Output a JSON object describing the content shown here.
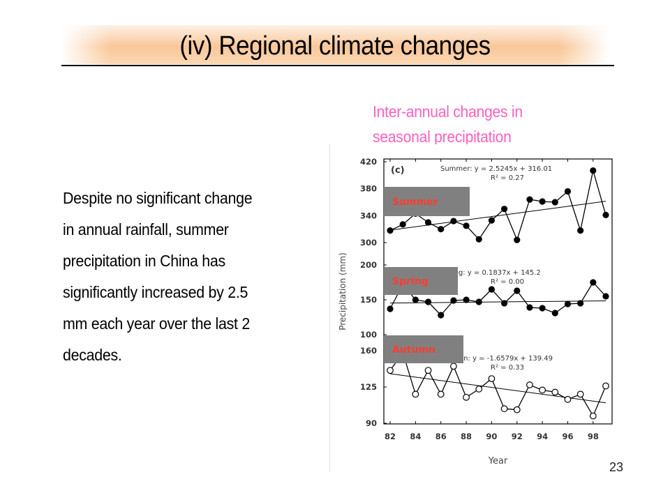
{
  "slide": {
    "title": "(iv) Regional climate changes",
    "page_number": "23"
  },
  "body": {
    "lines": [
      "Despite no significant change",
      "in annual rainfall, summer",
      "precipitation in China has",
      "significantly increased by 2.5",
      "mm each year over the last 2",
      "decades."
    ]
  },
  "chart_caption": {
    "lines": [
      "Inter-annual changes in",
      "seasonal precipitation"
    ]
  },
  "colors": {
    "caption": "#ff5fbf",
    "label_box": "#808080",
    "label_text": "#ff3b2f"
  },
  "chart_data": {
    "type": "line",
    "panel_label": "(c)",
    "xlabel": "Year",
    "ylabel": "Precipitation (mm)",
    "x_ticks": [
      "82",
      "84",
      "86",
      "88",
      "90",
      "92",
      "94",
      "96",
      "98"
    ],
    "x": [
      82,
      83,
      84,
      85,
      86,
      87,
      88,
      89,
      90,
      91,
      92,
      93,
      94,
      95,
      96,
      97,
      98,
      99
    ],
    "grid": false,
    "panels": [
      {
        "name": "Summer",
        "label": "Summer",
        "marker": "filled",
        "equation": "Summer: y = 2.5245x + 316.01",
        "r2": "R² = 0.27",
        "ylim": [
          300,
          420
        ],
        "y_ticks": [
          300,
          340,
          380,
          420
        ],
        "values": [
          318,
          327,
          343,
          330,
          320,
          332,
          325,
          305,
          333,
          350,
          304,
          364,
          361,
          360,
          376,
          318,
          407,
          341
        ],
        "trend": [
          318.5,
          361.4
        ]
      },
      {
        "name": "Spring",
        "label": "Spring",
        "marker": "filled",
        "equation": "Spring: y = 0.1837x + 145.2",
        "r2": "R² = 0.00",
        "ylim": [
          100,
          200
        ],
        "y_ticks": [
          100,
          150,
          200
        ],
        "values": [
          137,
          172,
          150,
          147,
          128,
          149,
          150,
          147,
          165,
          145,
          163,
          139,
          138,
          131,
          144,
          145,
          175,
          155
        ],
        "trend": [
          145.4,
          148.5
        ]
      },
      {
        "name": "Autumn",
        "label": "Autumn",
        "marker": "open",
        "equation": "Autumn: y = -1.6579x + 139.49",
        "r2": "R² = 0.33",
        "ylim": [
          90,
          160
        ],
        "y_ticks": [
          90,
          125,
          160
        ],
        "values": [
          141,
          158,
          118,
          141,
          118,
          145,
          115,
          123,
          133,
          104,
          103,
          127,
          122,
          120,
          113,
          118,
          97,
          126
        ],
        "trend": [
          137.8,
          109.7
        ]
      }
    ]
  }
}
